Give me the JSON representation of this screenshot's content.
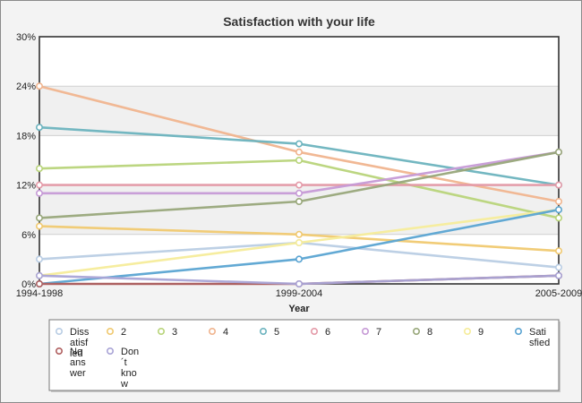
{
  "chart_data": {
    "type": "line",
    "title": "Satisfaction with your life",
    "xlabel": "Year",
    "ylabel": "",
    "x": [
      "1994-1998",
      "1999-2004",
      "2005-2009"
    ],
    "ylim": [
      0,
      30
    ],
    "yticks": [
      0,
      6,
      12,
      18,
      24,
      30
    ],
    "ytick_labels": [
      "0%",
      "6%",
      "12%",
      "18%",
      "24%",
      "30%"
    ],
    "grid": true,
    "legend_position": "bottom",
    "series": [
      {
        "name": "Dissatisfied",
        "legend_lines": [
          "Diss",
          "atisf",
          "ied"
        ],
        "color": "#b9cde4",
        "values": [
          3,
          5,
          2
        ]
      },
      {
        "name": "2",
        "legend_lines": [
          "2"
        ],
        "color": "#f0c970",
        "values": [
          7,
          6,
          4
        ]
      },
      {
        "name": "3",
        "legend_lines": [
          "3"
        ],
        "color": "#b8d47a",
        "values": [
          14,
          15,
          8
        ]
      },
      {
        "name": "4",
        "legend_lines": [
          "4"
        ],
        "color": "#f0b48e",
        "values": [
          24,
          16,
          10
        ]
      },
      {
        "name": "5",
        "legend_lines": [
          "5"
        ],
        "color": "#6bb3be",
        "values": [
          19,
          17,
          12
        ]
      },
      {
        "name": "6",
        "legend_lines": [
          "6"
        ],
        "color": "#e49aa8",
        "values": [
          12,
          12,
          12
        ]
      },
      {
        "name": "7",
        "legend_lines": [
          "7"
        ],
        "color": "#c69ad6",
        "values": [
          11,
          11,
          16
        ]
      },
      {
        "name": "8",
        "legend_lines": [
          "8"
        ],
        "color": "#98a77a",
        "values": [
          8,
          10,
          16
        ]
      },
      {
        "name": "9",
        "legend_lines": [
          "9"
        ],
        "color": "#f6ec9a",
        "values": [
          1,
          5,
          9
        ]
      },
      {
        "name": "Satisfied",
        "legend_lines": [
          "Sati",
          "sfied"
        ],
        "color": "#5aa4d2",
        "values": [
          0,
          3,
          9
        ]
      },
      {
        "name": "No answer",
        "legend_lines": [
          "No",
          "ans",
          "wer"
        ],
        "color": "#b06060",
        "values": [
          0,
          0,
          1
        ]
      },
      {
        "name": "Don´t know",
        "legend_lines": [
          "Don",
          "´t",
          "kno",
          "w"
        ],
        "color": "#a9a4d6",
        "values": [
          1,
          0,
          1
        ]
      }
    ]
  }
}
